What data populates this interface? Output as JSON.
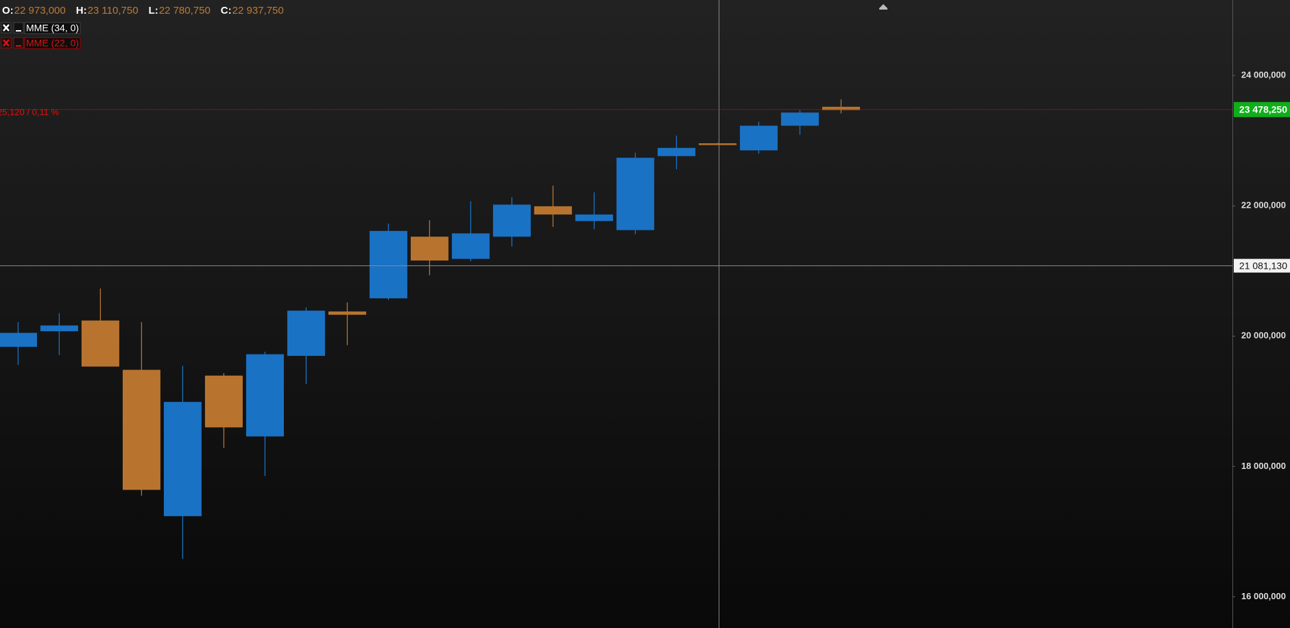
{
  "chart_data": {
    "type": "candlestick",
    "ohlc_header": [
      {
        "label": "O:",
        "value": "22 973,000"
      },
      {
        "label": "H:",
        "value": "23 110,750"
      },
      {
        "label": "L:",
        "value": "22 780,750"
      },
      {
        "label": "C:",
        "value": "22 937,750"
      }
    ],
    "indicators": [
      {
        "name": "MME (34, 0)",
        "color": "#ffffff"
      },
      {
        "name": "MME (22, 0)",
        "color": "#e01010"
      }
    ],
    "up_color": "#1a72c4",
    "down_color": "#b8742f",
    "open": [
      19836100,
      20075800,
      20239800,
      19482800,
      17236800,
      19394400,
      18460700,
      19697300,
      20378600,
      20580500,
      21526900,
      21186200,
      21526900,
      21993700,
      21766600,
      21627800,
      22763400,
      22960000,
      22851800,
      23230300,
      23520500
    ],
    "high": [
      20214600,
      20353400,
      20731900,
      20214600,
      19545800,
      19432300,
      19760400,
      20441700,
      20517400,
      21728800,
      21779200,
      22069400,
      22132500,
      22309200,
      22208200,
      22813900,
      23078900,
      22965000,
      23293400,
      23470000,
      23634100
    ],
    "low": [
      19558500,
      19709900,
      19533200,
      17552200,
      16580600,
      18284000,
      17855000,
      19268200,
      19861300,
      20555300,
      20933800,
      21148300,
      21375500,
      21678300,
      21640400,
      21564700,
      22561500,
      22940000,
      22801300,
      23091500,
      23419600
    ],
    "close": [
      20050600,
      20164000,
      19533200,
      17640500,
      18990700,
      18599500,
      19722500,
      20391300,
      20328200,
      21615200,
      21160900,
      21577300,
      22019000,
      21867600,
      21867600,
      22738200,
      22889600,
      22945000,
      23230300,
      23432200,
      23470000
    ],
    "ylim": [
      15520000,
      25160000
    ],
    "yticks": [
      {
        "value": 16000000,
        "label": "16 000,000"
      },
      {
        "value": 18000000,
        "label": "18 000,000"
      },
      {
        "value": 20000000,
        "label": "20 000,000"
      },
      {
        "value": 22000000,
        "label": "22 000,000"
      },
      {
        "value": 24000000,
        "label": "24 000,000"
      }
    ],
    "last_price": {
      "value": 23478250,
      "label": "23 478,250",
      "change": "25,120 / 0,11 %"
    },
    "crosshair": {
      "value": 21081130,
      "label": "21 081,130",
      "index": 17
    }
  }
}
